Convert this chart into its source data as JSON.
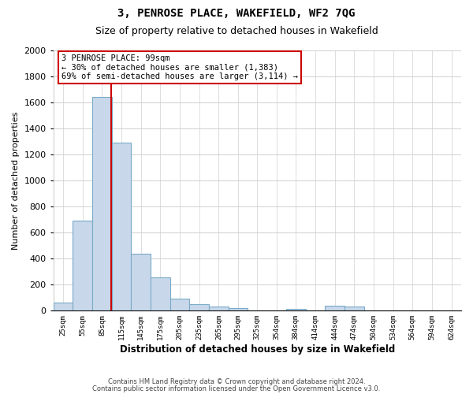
{
  "title": "3, PENROSE PLACE, WAKEFIELD, WF2 7QG",
  "subtitle": "Size of property relative to detached houses in Wakefield",
  "xlabel": "Distribution of detached houses by size in Wakefield",
  "ylabel": "Number of detached properties",
  "bar_color": "#c8d8ea",
  "bar_edge_color": "#7aaac8",
  "categories": [
    "25sqm",
    "55sqm",
    "85sqm",
    "115sqm",
    "145sqm",
    "175sqm",
    "205sqm",
    "235sqm",
    "265sqm",
    "295sqm",
    "325sqm",
    "354sqm",
    "384sqm",
    "414sqm",
    "444sqm",
    "474sqm",
    "504sqm",
    "534sqm",
    "564sqm",
    "594sqm",
    "624sqm"
  ],
  "values": [
    65,
    690,
    1640,
    1290,
    435,
    255,
    90,
    50,
    30,
    20,
    0,
    0,
    15,
    0,
    40,
    30,
    0,
    0,
    0,
    0,
    0
  ],
  "ylim": [
    0,
    2000
  ],
  "yticks": [
    0,
    200,
    400,
    600,
    800,
    1000,
    1200,
    1400,
    1600,
    1800,
    2000
  ],
  "annotation_title": "3 PENROSE PLACE: 99sqm",
  "annotation_line1": "← 30% of detached houses are smaller (1,383)",
  "annotation_line2": "69% of semi-detached houses are larger (3,114) →",
  "vline_color": "#cc0000",
  "annotation_box_edge": "#cc0000",
  "footer1": "Contains HM Land Registry data © Crown copyright and database right 2024.",
  "footer2": "Contains public sector information licensed under the Open Government Licence v3.0.",
  "background_color": "#ffffff",
  "grid_color": "#d0d0d0",
  "bin_edges": [
    10,
    40,
    70,
    100,
    130,
    160,
    190,
    220,
    250,
    280,
    310,
    339,
    369,
    399,
    429,
    459,
    489,
    519,
    549,
    579,
    609,
    639
  ]
}
